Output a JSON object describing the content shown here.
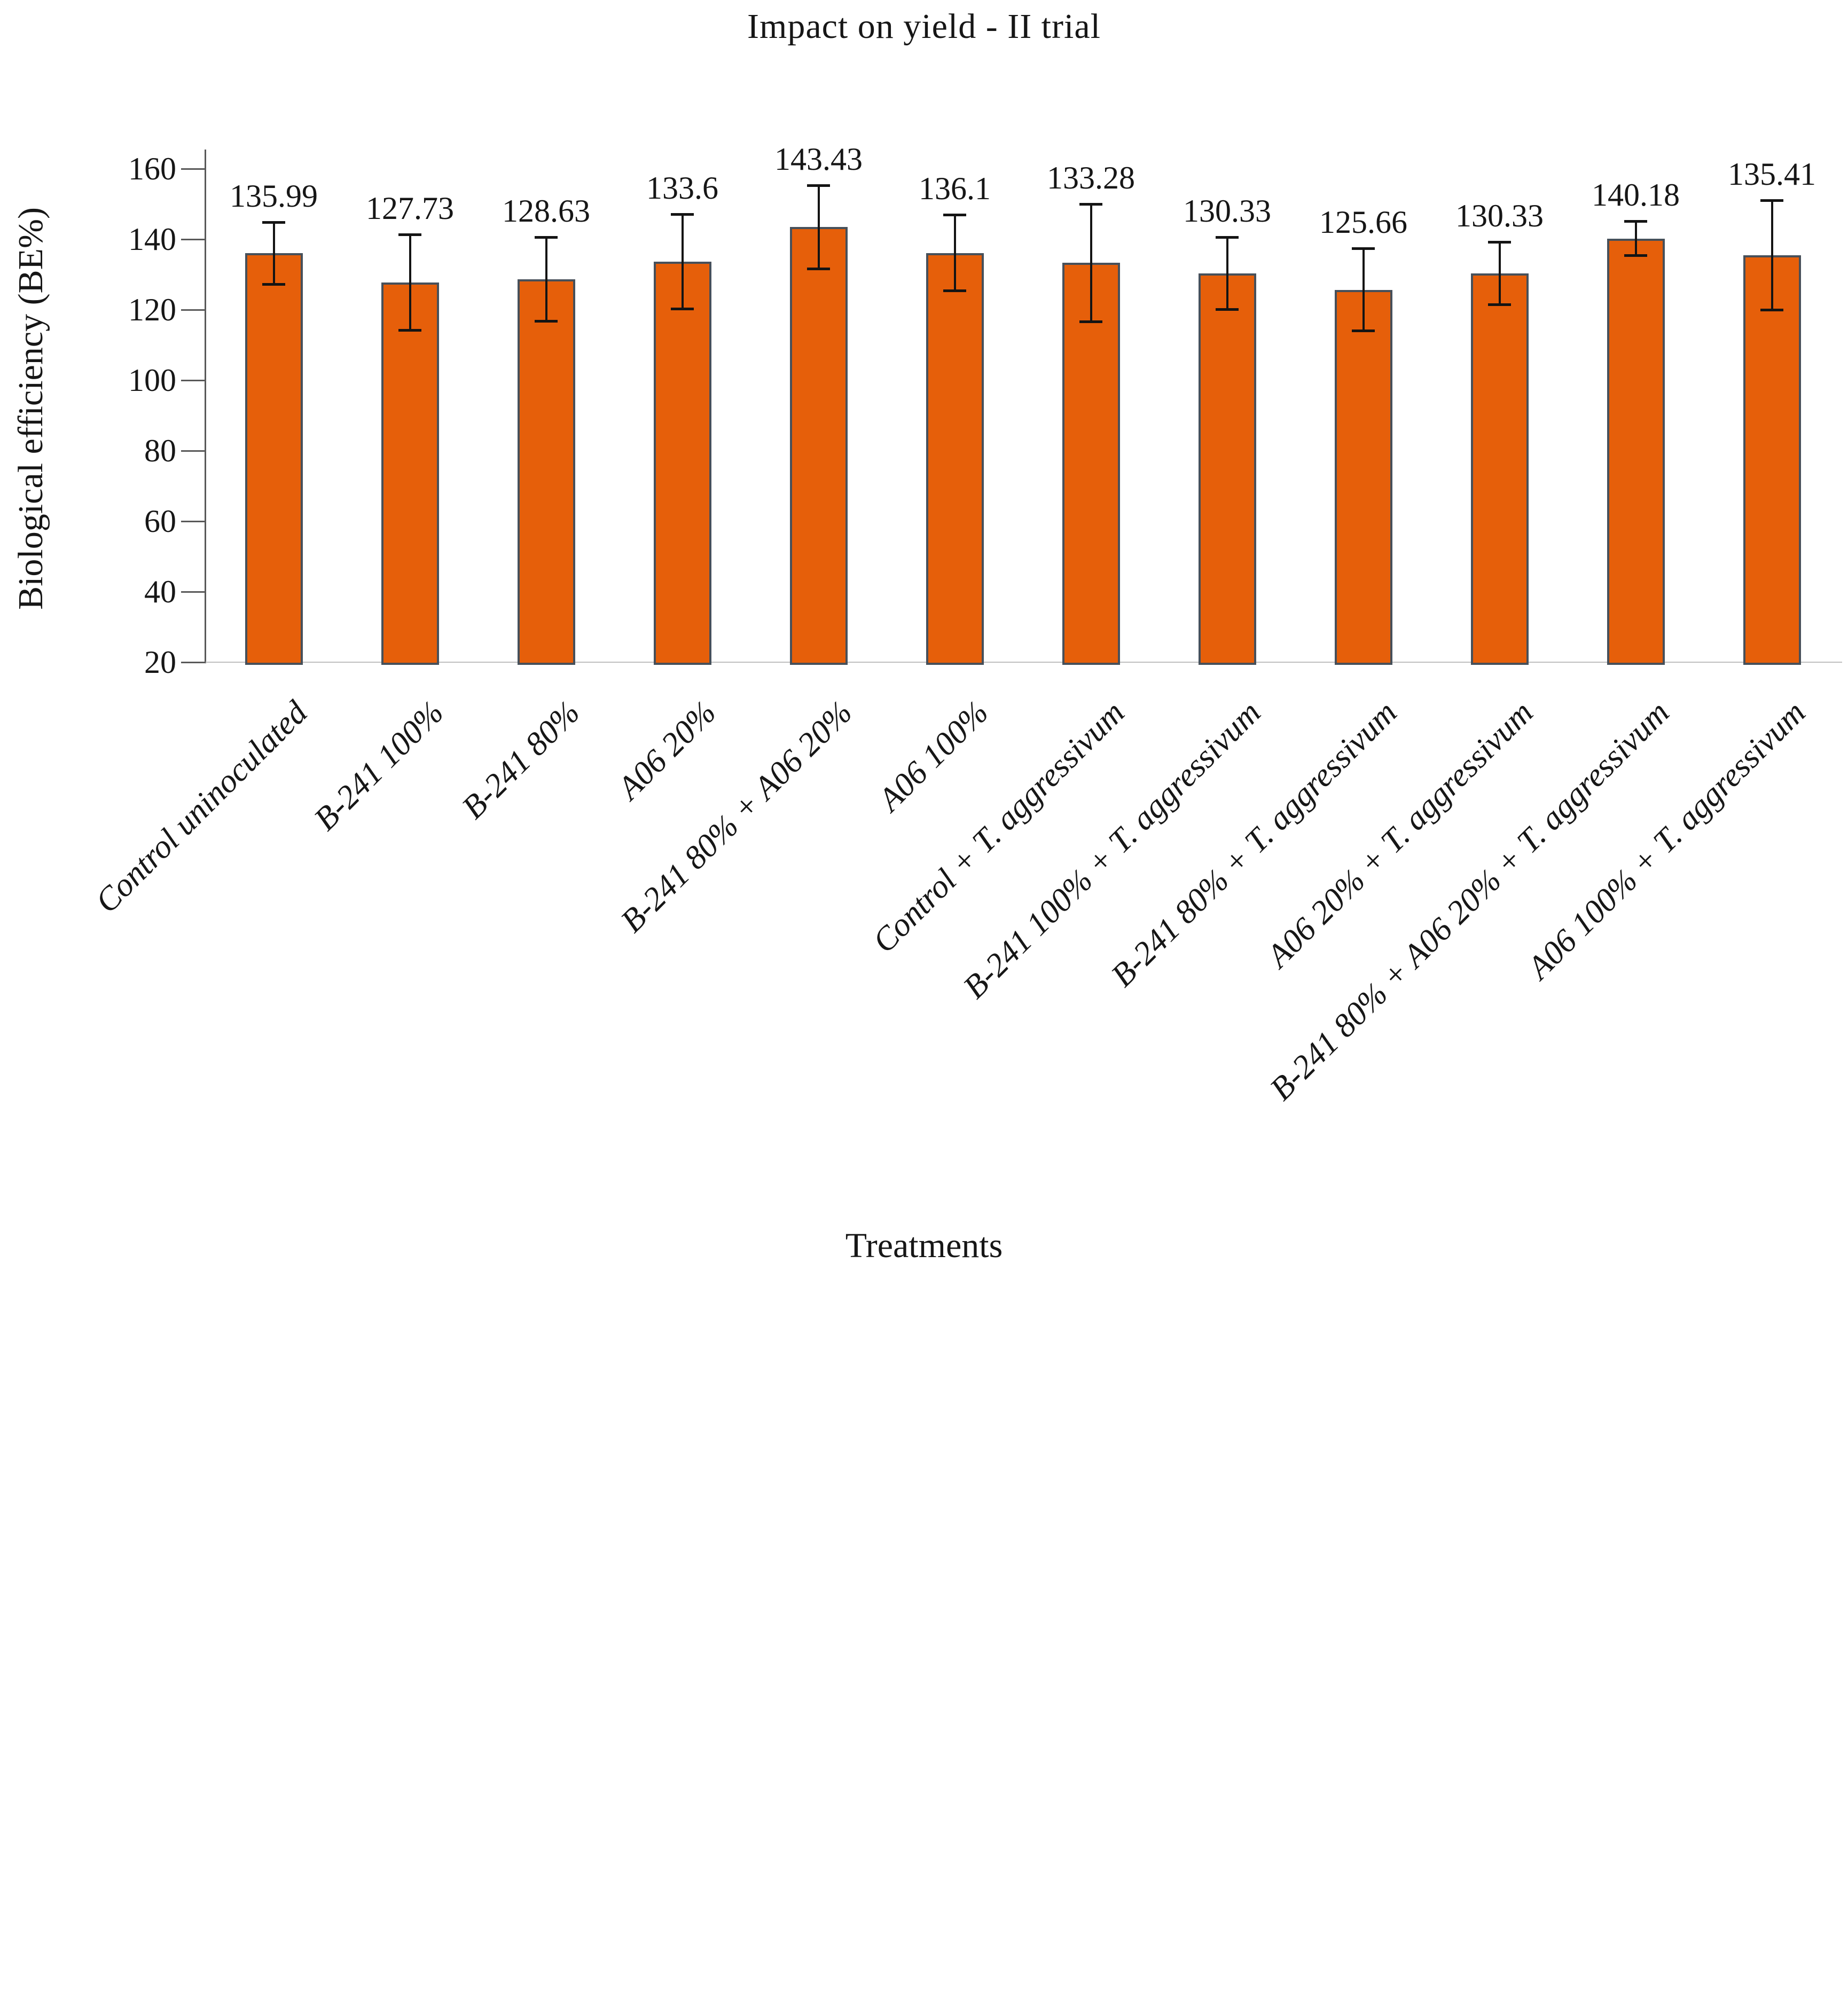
{
  "title": "Impact on yield - II trial",
  "x_axis": {
    "title": "Treatments"
  },
  "y_axis": {
    "title": "Biological efficiency (BE%)"
  },
  "chart_data": {
    "type": "bar",
    "title": "Impact on yield - II trial",
    "xlabel": "Treatments",
    "ylabel": "Biological efficiency (BE%)",
    "ylim": [
      20,
      160
    ],
    "yticks": [
      20,
      40,
      60,
      80,
      100,
      120,
      140,
      160
    ],
    "grid": false,
    "legend_position": "none",
    "categories": [
      "Control uninoculated",
      "B-241 100%",
      "B-241 80%",
      "A06 20%",
      "B-241 80% + A06 20%",
      "A06 100%",
      "Control + T. aggressivum",
      "B-241 100% + T. aggressivum",
      "B-241 80% + T. aggressivum",
      "A06 20% + T. aggressivum",
      "B-241 80% + A06 20% + T. aggressivum",
      "A06 100% + T. aggressivum"
    ],
    "values": [
      135.99,
      127.73,
      128.63,
      133.6,
      143.43,
      136.1,
      133.28,
      130.33,
      125.66,
      130.33,
      140.18,
      135.41
    ],
    "data_labels": [
      "135.99",
      "127.73",
      "128.63",
      "133.6",
      "143.43",
      "136.1",
      "133.28",
      "130.33",
      "125.66",
      "130.33",
      "140.18",
      "135.41"
    ],
    "error_bars": [
      8.9,
      13.7,
      12.0,
      13.5,
      11.9,
      10.8,
      16.7,
      10.3,
      11.7,
      8.9,
      4.9,
      15.6
    ],
    "bar_color": "#E65F0A",
    "bar_border_color": "#47505A",
    "error_bar_color": "#141414",
    "axis_line_color": "#595959",
    "baseline_color": "#bfbfbf",
    "background_color": "#ffffff"
  }
}
